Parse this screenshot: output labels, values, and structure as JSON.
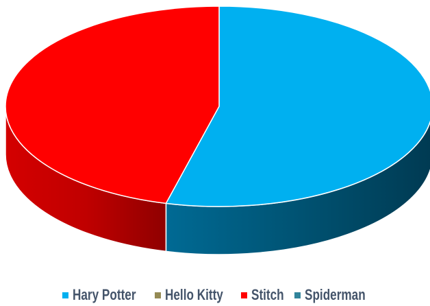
{
  "chart_data": {
    "type": "pie",
    "style": "3d-pie",
    "title": "",
    "legend_position": "bottom",
    "categories": [
      "Hary Potter",
      "Hello Kitty",
      "Stitch",
      "Spiderman"
    ],
    "values": [
      54,
      0,
      46,
      0
    ],
    "colors": [
      "#00b0f0",
      "#948a54",
      "#ff0000",
      "#31849b"
    ]
  }
}
